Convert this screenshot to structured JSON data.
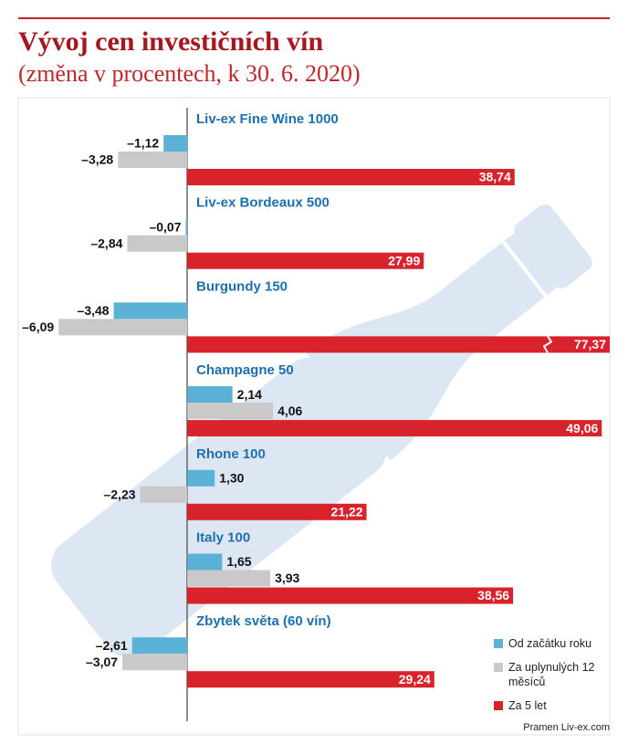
{
  "chart_data": {
    "type": "bar",
    "orientation": "horizontal",
    "title": "Vývoj cen investičních vín",
    "subtitle": "(změna v procentech, k 30. 6. 2020)",
    "source": "Pramen Liv-ex.com",
    "categories": [
      "Liv-ex Fine Wine 1000",
      "Liv-ex Bordeaux 500",
      "Burgundy 150",
      "Champagne 50",
      "Rhone 100",
      "Italy 100",
      "Zbytek světa (60 vín)"
    ],
    "xlim": [
      -8,
      20
    ],
    "x2lim": [
      -20,
      50
    ],
    "legend": "bottom-right",
    "series": [
      {
        "name": "Od začátku roku",
        "color": "#5bb1d6",
        "axis": "x",
        "values": [
          -1.12,
          -0.07,
          -3.48,
          2.14,
          1.3,
          1.65,
          -2.61
        ],
        "value_labels": [
          "–1,12",
          "–0,07",
          "–3,48",
          "2,14",
          "1,30",
          "1,65",
          "–2,61"
        ]
      },
      {
        "name": "Za uplynulých 12 měsíců",
        "color": "#c9c9c9",
        "axis": "x",
        "values": [
          -3.28,
          -2.84,
          -6.09,
          4.06,
          -2.23,
          3.93,
          -3.07
        ],
        "value_labels": [
          "–3,28",
          "–2,84",
          "–6,09",
          "4,06",
          "–2,23",
          "3,93",
          "–3,07"
        ]
      },
      {
        "name": "Za 5 let",
        "color": "#d8232c",
        "axis": "x2",
        "values": [
          38.74,
          27.99,
          77.37,
          49.06,
          21.22,
          38.56,
          29.24
        ],
        "value_labels": [
          "38,74",
          "27,99",
          "77,37",
          "49,06",
          "21,22",
          "38,56",
          "29,24"
        ]
      }
    ]
  }
}
